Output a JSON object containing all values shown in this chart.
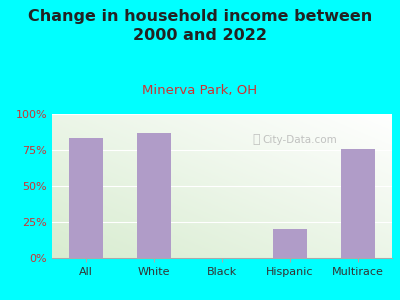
{
  "title": "Change in household income between\n2000 and 2022",
  "subtitle": "Minerva Park, OH",
  "categories": [
    "All",
    "White",
    "Black",
    "Hispanic",
    "Multirace"
  ],
  "values": [
    83,
    87,
    0,
    20,
    76
  ],
  "bar_color": "#b09cc8",
  "background_color": "#00ffff",
  "plot_bg_top_right": "#ffffff",
  "plot_bg_bottom_left": "#d8ecd0",
  "title_fontsize": 11.5,
  "subtitle_fontsize": 9.5,
  "subtitle_color": "#cc3333",
  "title_color": "#222222",
  "tick_color": "#cc3333",
  "xlabel_color": "#333333",
  "ylim": [
    0,
    100
  ],
  "yticks": [
    0,
    25,
    50,
    75,
    100
  ],
  "ytick_labels": [
    "0%",
    "25%",
    "50%",
    "75%",
    "100%"
  ],
  "watermark": "City-Data.com",
  "bar_width": 0.5
}
